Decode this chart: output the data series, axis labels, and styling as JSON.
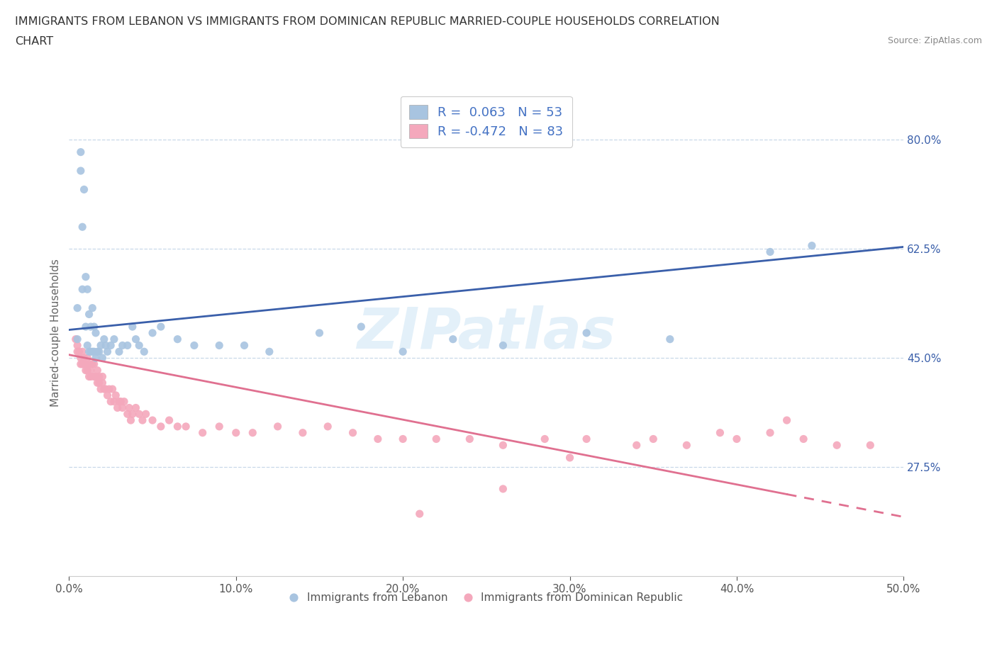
{
  "title_line1": "IMMIGRANTS FROM LEBANON VS IMMIGRANTS FROM DOMINICAN REPUBLIC MARRIED-COUPLE HOUSEHOLDS CORRELATION",
  "title_line2": "CHART",
  "source": "Source: ZipAtlas.com",
  "ylabel": "Married-couple Households",
  "xmin": 0.0,
  "xmax": 0.5,
  "ymin": 0.1,
  "ymax": 0.88,
  "yticks": [
    0.275,
    0.45,
    0.625,
    0.8
  ],
  "ytick_labels": [
    "27.5%",
    "45.0%",
    "62.5%",
    "80.0%"
  ],
  "xticks": [
    0.0,
    0.1,
    0.2,
    0.3,
    0.4,
    0.5
  ],
  "xtick_labels": [
    "0.0%",
    "10.0%",
    "20.0%",
    "30.0%",
    "40.0%",
    "50.0%"
  ],
  "lebanon_color": "#a8c4e0",
  "dr_color": "#f4a8bc",
  "lebanon_line_color": "#3a5faa",
  "dr_line_color": "#e07090",
  "legend_R_lebanon": "0.063",
  "legend_N_lebanon": "53",
  "legend_R_dr": "-0.472",
  "legend_N_dr": "83",
  "lebanon_x": [
    0.005,
    0.005,
    0.007,
    0.007,
    0.008,
    0.008,
    0.009,
    0.01,
    0.01,
    0.011,
    0.011,
    0.012,
    0.012,
    0.013,
    0.013,
    0.014,
    0.014,
    0.015,
    0.015,
    0.016,
    0.016,
    0.017,
    0.018,
    0.019,
    0.02,
    0.021,
    0.022,
    0.023,
    0.025,
    0.027,
    0.03,
    0.032,
    0.035,
    0.038,
    0.04,
    0.042,
    0.045,
    0.05,
    0.055,
    0.065,
    0.075,
    0.09,
    0.105,
    0.12,
    0.15,
    0.175,
    0.2,
    0.23,
    0.26,
    0.31,
    0.36,
    0.42,
    0.445
  ],
  "lebanon_y": [
    0.53,
    0.48,
    0.75,
    0.78,
    0.56,
    0.66,
    0.72,
    0.5,
    0.58,
    0.47,
    0.56,
    0.46,
    0.52,
    0.46,
    0.5,
    0.46,
    0.53,
    0.46,
    0.5,
    0.45,
    0.49,
    0.46,
    0.46,
    0.47,
    0.45,
    0.48,
    0.47,
    0.46,
    0.47,
    0.48,
    0.46,
    0.47,
    0.47,
    0.5,
    0.48,
    0.47,
    0.46,
    0.49,
    0.5,
    0.48,
    0.47,
    0.47,
    0.47,
    0.46,
    0.49,
    0.5,
    0.46,
    0.48,
    0.47,
    0.49,
    0.48,
    0.62,
    0.63
  ],
  "dr_x": [
    0.004,
    0.005,
    0.005,
    0.006,
    0.007,
    0.007,
    0.008,
    0.008,
    0.009,
    0.009,
    0.01,
    0.01,
    0.011,
    0.011,
    0.012,
    0.012,
    0.013,
    0.013,
    0.014,
    0.015,
    0.015,
    0.016,
    0.017,
    0.017,
    0.018,
    0.018,
    0.019,
    0.02,
    0.02,
    0.021,
    0.022,
    0.023,
    0.024,
    0.025,
    0.026,
    0.027,
    0.028,
    0.029,
    0.03,
    0.031,
    0.032,
    0.033,
    0.035,
    0.036,
    0.037,
    0.038,
    0.04,
    0.042,
    0.044,
    0.046,
    0.05,
    0.055,
    0.06,
    0.065,
    0.07,
    0.08,
    0.09,
    0.1,
    0.11,
    0.125,
    0.14,
    0.155,
    0.17,
    0.185,
    0.2,
    0.22,
    0.24,
    0.26,
    0.285,
    0.31,
    0.34,
    0.37,
    0.4,
    0.42,
    0.44,
    0.46,
    0.48,
    0.43,
    0.39,
    0.35,
    0.3,
    0.26,
    0.21
  ],
  "dr_y": [
    0.48,
    0.47,
    0.46,
    0.46,
    0.45,
    0.44,
    0.44,
    0.46,
    0.45,
    0.44,
    0.44,
    0.43,
    0.43,
    0.45,
    0.42,
    0.44,
    0.43,
    0.42,
    0.44,
    0.44,
    0.42,
    0.42,
    0.41,
    0.43,
    0.41,
    0.42,
    0.4,
    0.41,
    0.42,
    0.4,
    0.4,
    0.39,
    0.4,
    0.38,
    0.4,
    0.38,
    0.39,
    0.37,
    0.38,
    0.38,
    0.37,
    0.38,
    0.36,
    0.37,
    0.35,
    0.36,
    0.37,
    0.36,
    0.35,
    0.36,
    0.35,
    0.34,
    0.35,
    0.34,
    0.34,
    0.33,
    0.34,
    0.33,
    0.33,
    0.34,
    0.33,
    0.34,
    0.33,
    0.32,
    0.32,
    0.32,
    0.32,
    0.31,
    0.32,
    0.32,
    0.31,
    0.31,
    0.32,
    0.33,
    0.32,
    0.31,
    0.31,
    0.35,
    0.33,
    0.32,
    0.29,
    0.24,
    0.2
  ],
  "watermark": "ZIPatlas",
  "background_color": "#ffffff",
  "grid_color": "#c8d8e8"
}
